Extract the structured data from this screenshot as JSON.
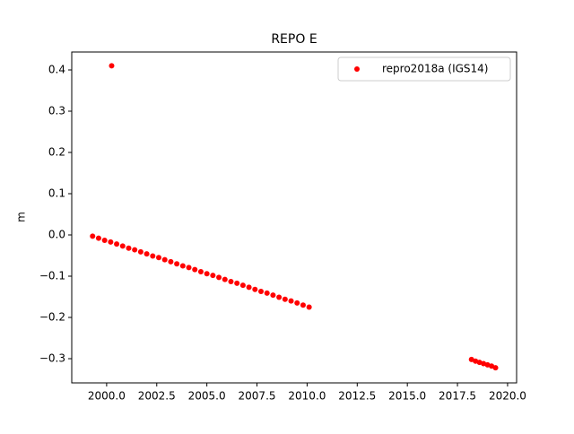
{
  "chart_data": {
    "type": "scatter",
    "title": "REPO E",
    "y_label": "m",
    "legend_position": "upper right",
    "series": [
      {
        "name": "repro2018a (IGS14)",
        "color": "#ff0000",
        "x": [
          1999.3,
          1999.6,
          1999.9,
          2000.2,
          2000.25,
          2000.5,
          2000.8,
          2001.1,
          2001.4,
          2001.7,
          2002.0,
          2002.3,
          2002.6,
          2002.9,
          2003.2,
          2003.5,
          2003.8,
          2004.1,
          2004.4,
          2004.7,
          2005.0,
          2005.3,
          2005.6,
          2005.9,
          2006.2,
          2006.5,
          2006.8,
          2007.1,
          2007.4,
          2007.7,
          2008.0,
          2008.3,
          2008.6,
          2008.9,
          2009.2,
          2009.5,
          2009.8,
          2010.1,
          2018.2,
          2018.4,
          2018.6,
          2018.8,
          2019.0,
          2019.2,
          2019.4
        ],
        "values": [
          -0.003,
          -0.008,
          -0.013,
          -0.017,
          0.41,
          -0.022,
          -0.027,
          -0.032,
          -0.036,
          -0.041,
          -0.046,
          -0.051,
          -0.055,
          -0.06,
          -0.065,
          -0.07,
          -0.075,
          -0.079,
          -0.084,
          -0.089,
          -0.094,
          -0.098,
          -0.103,
          -0.108,
          -0.113,
          -0.117,
          -0.122,
          -0.127,
          -0.132,
          -0.137,
          -0.141,
          -0.146,
          -0.151,
          -0.156,
          -0.16,
          -0.165,
          -0.17,
          -0.175,
          -0.302,
          -0.306,
          -0.309,
          -0.312,
          -0.315,
          -0.318,
          -0.322
        ]
      }
    ],
    "xlim": [
      1998.26,
      2020.45
    ],
    "ylim": [
      -0.3587,
      0.4435
    ],
    "xticks": [
      {
        "value": 2000,
        "label": "2000.0"
      },
      {
        "value": 2002.5,
        "label": "2002.5"
      },
      {
        "value": 2005,
        "label": "2005.0"
      },
      {
        "value": 2007.5,
        "label": "2007.5"
      },
      {
        "value": 2010,
        "label": "2010.0"
      },
      {
        "value": 2012.5,
        "label": "2012.5"
      },
      {
        "value": 2015,
        "label": "2015.0"
      },
      {
        "value": 2017.5,
        "label": "2017.5"
      },
      {
        "value": 2020,
        "label": "2020.0"
      }
    ],
    "yticks": [
      {
        "value": -0.3,
        "label": "−0.3"
      },
      {
        "value": -0.2,
        "label": "−0.2"
      },
      {
        "value": -0.1,
        "label": "−0.1"
      },
      {
        "value": 0,
        "label": "0.0"
      },
      {
        "value": 0.1,
        "label": "0.1"
      },
      {
        "value": 0.2,
        "label": "0.2"
      },
      {
        "value": 0.3,
        "label": "0.3"
      },
      {
        "value": 0.4,
        "label": "0.4"
      }
    ]
  }
}
